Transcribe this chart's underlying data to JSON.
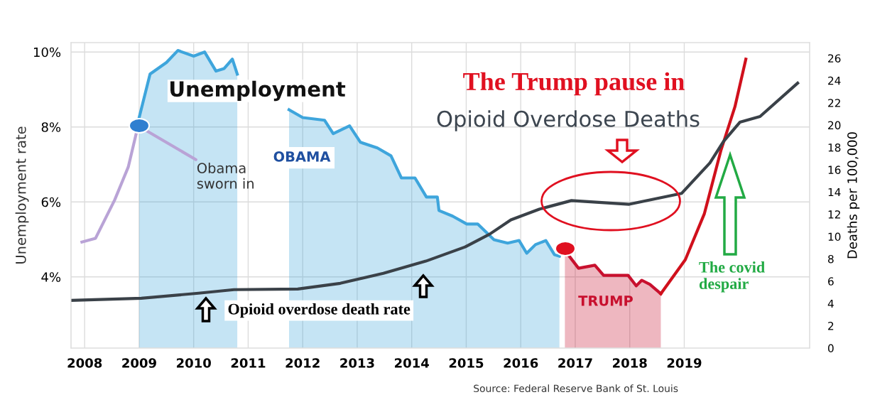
{
  "chart_data": {
    "type": "line",
    "title": "The Trump pause in",
    "subtitle": "Opioid Overdose Deaths",
    "ylabel": "Unemployment rate",
    "y2label": "Deaths per 100,000",
    "xlim": [
      2007.75,
      2021.3
    ],
    "xticks": [
      2008,
      2009,
      2010,
      2011,
      2012,
      2013,
      2014,
      2015,
      2016,
      2017,
      2018,
      2019
    ],
    "ylim": [
      2.1,
      10.25
    ],
    "yticks": [
      {
        "value": 4,
        "label": "4%"
      },
      {
        "value": 6,
        "label": "6%"
      },
      {
        "value": 8,
        "label": "8%"
      },
      {
        "value": 10,
        "label": "10%"
      }
    ],
    "y2lim": [
      0,
      27.4
    ],
    "y2ticks": [
      0,
      2,
      4,
      6,
      8,
      10,
      12,
      14,
      16,
      18,
      20,
      22,
      24,
      26
    ],
    "grid": true,
    "legend": false,
    "series": [
      {
        "color": "#b9a3d6",
        "x": [
          2007.95,
          2008.2,
          2008.55,
          2008.8,
          2008.98
        ],
        "values": [
          4.93,
          5.03,
          6.05,
          6.93,
          8.03
        ]
      },
      {
        "type": "area",
        "color": "#3ea5dc",
        "x": [
          2009.0,
          2009.2,
          2009.5,
          2009.71,
          2010.0,
          2010.2,
          2010.41,
          2010.56,
          2010.71,
          2010.8,
          2010.96,
          2011.75,
          2012.0,
          2012.4,
          2012.56,
          2012.86,
          2013.06,
          2013.37,
          2013.62,
          2013.81,
          2014.06,
          2014.27,
          2014.47,
          2014.5,
          2014.75,
          2015.01,
          2015.21,
          2015.51,
          2015.76,
          2015.97,
          2016.11,
          2016.27,
          2016.46,
          2016.62,
          2016.71
        ],
        "values": [
          8.25,
          9.41,
          9.72,
          10.04,
          9.89,
          10.0,
          9.49,
          9.56,
          9.81,
          9.41,
          null,
          8.46,
          8.25,
          8.18,
          7.82,
          8.03,
          7.59,
          7.44,
          7.23,
          6.64,
          6.64,
          6.13,
          6.13,
          5.77,
          5.62,
          5.41,
          5.41,
          4.99,
          4.9,
          4.97,
          4.63,
          4.86,
          4.97,
          4.59,
          4.55
        ]
      },
      {
        "type": "area",
        "color": "#c8102e",
        "x": [
          2016.81,
          2016.87,
          2017.06,
          2017.36,
          2017.52,
          2017.97,
          2018.12,
          2018.22,
          2018.37,
          2018.57
        ],
        "values": [
          4.74,
          4.59,
          4.23,
          4.31,
          4.04,
          4.04,
          3.76,
          3.91,
          3.8,
          3.55
        ]
      },
      {
        "color": "#d0101c",
        "x": [
          2018.57,
          2019.02,
          2019.37,
          2019.67,
          2019.93,
          2020.13
        ],
        "values": [
          3.55,
          4.46,
          5.69,
          7.36,
          8.54,
          9.81
        ]
      },
      {
        "type": "line",
        "color": "#3a4148",
        "axis": "y2",
        "x": [
          2007.75,
          2009.04,
          2010.09,
          2010.74,
          2011.91,
          2012.69,
          2013.48,
          2014.26,
          2014.98,
          2015.43,
          2015.82,
          2016.34,
          2016.93,
          2017.99,
          2018.95,
          2019.47,
          2019.72,
          2020.02,
          2020.39,
          2021.08
        ],
        "values": [
          4.28,
          4.47,
          4.92,
          5.24,
          5.3,
          5.81,
          6.71,
          7.8,
          9.07,
          10.22,
          11.5,
          12.46,
          13.23,
          12.9,
          13.87,
          16.61,
          18.53,
          20.26,
          20.77,
          23.77
        ]
      }
    ],
    "annotations": [
      "Unemployment",
      {
        "text": "Obama sworn in",
        "x": 2008.98,
        "y": 8.03
      },
      "OBAMA",
      "TRUMP",
      "Opioid overdose death rate",
      "The covid despair",
      "Source: Federal Reserve Bank of St. Louis"
    ]
  }
}
